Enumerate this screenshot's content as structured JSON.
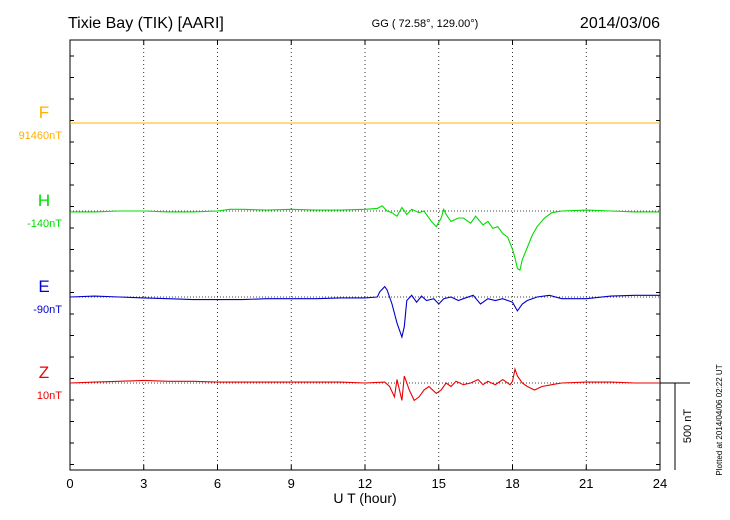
{
  "header": {
    "station": "Tixie Bay (TIK)  [AARI]",
    "coords": "GG ( 72.58°, 129.00°)",
    "date": "2014/03/06"
  },
  "stamp": "Plotted at 2014/04/06 02:22 UT",
  "chart_data": {
    "type": "line",
    "xlabel": "U T (hour)",
    "xlim": [
      0,
      24
    ],
    "xticks": [
      "0",
      "3",
      "6",
      "9",
      "12",
      "15",
      "18",
      "21",
      "24"
    ],
    "grid": "vertical dotted at 3-hour intervals",
    "scale_bar": {
      "label": "500 nT",
      "value_nT": 500
    },
    "series": [
      {
        "name": "F",
        "baseline_label": "91460nT",
        "color": "#ffb000",
        "points": [
          [
            0,
            0
          ],
          [
            24,
            0
          ]
        ]
      },
      {
        "name": "H",
        "baseline_label": "-140nT",
        "color": "#00dd00",
        "points": [
          [
            0,
            -5
          ],
          [
            1,
            -5
          ],
          [
            2,
            0
          ],
          [
            3,
            0
          ],
          [
            4,
            -5
          ],
          [
            5,
            -5
          ],
          [
            6,
            0
          ],
          [
            6.5,
            10
          ],
          [
            7,
            10
          ],
          [
            8,
            5
          ],
          [
            9,
            10
          ],
          [
            10,
            5
          ],
          [
            11,
            5
          ],
          [
            12,
            10
          ],
          [
            12.5,
            15
          ],
          [
            12.7,
            30
          ],
          [
            12.9,
            0
          ],
          [
            13.1,
            -10
          ],
          [
            13.3,
            -30
          ],
          [
            13.5,
            20
          ],
          [
            13.7,
            -20
          ],
          [
            13.9,
            10
          ],
          [
            14.2,
            -10
          ],
          [
            14.4,
            0
          ],
          [
            14.7,
            -60
          ],
          [
            14.9,
            -90
          ],
          [
            15.1,
            -40
          ],
          [
            15.2,
            10
          ],
          [
            15.3,
            -20
          ],
          [
            15.5,
            -60
          ],
          [
            15.8,
            -40
          ],
          [
            16.0,
            -40
          ],
          [
            16.3,
            -70
          ],
          [
            16.5,
            -30
          ],
          [
            16.8,
            -80
          ],
          [
            17.0,
            -60
          ],
          [
            17.2,
            -100
          ],
          [
            17.4,
            -90
          ],
          [
            17.6,
            -130
          ],
          [
            17.8,
            -150
          ],
          [
            18.0,
            -220
          ],
          [
            18.1,
            -270
          ],
          [
            18.2,
            -330
          ],
          [
            18.3,
            -340
          ],
          [
            18.4,
            -280
          ],
          [
            18.6,
            -210
          ],
          [
            18.8,
            -140
          ],
          [
            19.0,
            -90
          ],
          [
            19.3,
            -40
          ],
          [
            19.6,
            -10
          ],
          [
            20,
            0
          ],
          [
            21,
            5
          ],
          [
            22,
            0
          ],
          [
            23,
            -5
          ],
          [
            24,
            -5
          ]
        ]
      },
      {
        "name": "E",
        "baseline_label": "-90nT",
        "color": "#0000cc",
        "points": [
          [
            0,
            0
          ],
          [
            1,
            5
          ],
          [
            2,
            0
          ],
          [
            3,
            -5
          ],
          [
            4,
            -10
          ],
          [
            5,
            -15
          ],
          [
            6,
            -15
          ],
          [
            7,
            -15
          ],
          [
            8,
            -10
          ],
          [
            9,
            -10
          ],
          [
            10,
            -10
          ],
          [
            11,
            -5
          ],
          [
            12,
            -5
          ],
          [
            12.5,
            0
          ],
          [
            12.6,
            30
          ],
          [
            12.8,
            60
          ],
          [
            12.9,
            40
          ],
          [
            13.1,
            -40
          ],
          [
            13.3,
            -150
          ],
          [
            13.5,
            -230
          ],
          [
            13.6,
            -170
          ],
          [
            13.7,
            -20
          ],
          [
            13.9,
            10
          ],
          [
            14.1,
            -30
          ],
          [
            14.3,
            5
          ],
          [
            14.5,
            -20
          ],
          [
            14.8,
            -10
          ],
          [
            15.0,
            -40
          ],
          [
            15.2,
            -10
          ],
          [
            15.5,
            0
          ],
          [
            15.8,
            -20
          ],
          [
            16.0,
            -10
          ],
          [
            16.4,
            10
          ],
          [
            16.7,
            -40
          ],
          [
            17.0,
            -10
          ],
          [
            17.3,
            -20
          ],
          [
            17.6,
            -10
          ],
          [
            18.0,
            -30
          ],
          [
            18.2,
            -80
          ],
          [
            18.4,
            -40
          ],
          [
            18.6,
            -20
          ],
          [
            19.0,
            0
          ],
          [
            19.5,
            10
          ],
          [
            20,
            -10
          ],
          [
            21,
            -10
          ],
          [
            22,
            5
          ],
          [
            23,
            10
          ],
          [
            24,
            10
          ]
        ]
      },
      {
        "name": "Z",
        "baseline_label": "10nT",
        "color": "#ee0000",
        "points": [
          [
            0,
            0
          ],
          [
            1,
            5
          ],
          [
            2,
            10
          ],
          [
            3,
            15
          ],
          [
            4,
            10
          ],
          [
            5,
            10
          ],
          [
            6,
            5
          ],
          [
            7,
            5
          ],
          [
            8,
            5
          ],
          [
            9,
            5
          ],
          [
            10,
            5
          ],
          [
            11,
            5
          ],
          [
            12,
            0
          ],
          [
            12.8,
            5
          ],
          [
            13.0,
            -20
          ],
          [
            13.2,
            -80
          ],
          [
            13.3,
            20
          ],
          [
            13.5,
            -100
          ],
          [
            13.6,
            40
          ],
          [
            13.8,
            -40
          ],
          [
            14.0,
            -100
          ],
          [
            14.2,
            -80
          ],
          [
            14.4,
            -40
          ],
          [
            14.6,
            -20
          ],
          [
            14.9,
            -60
          ],
          [
            15.1,
            -40
          ],
          [
            15.3,
            0
          ],
          [
            15.5,
            -20
          ],
          [
            15.7,
            10
          ],
          [
            16.0,
            -10
          ],
          [
            16.3,
            0
          ],
          [
            16.6,
            20
          ],
          [
            16.8,
            -10
          ],
          [
            17.0,
            10
          ],
          [
            17.3,
            -10
          ],
          [
            17.6,
            20
          ],
          [
            17.9,
            -10
          ],
          [
            18.0,
            10
          ],
          [
            18.1,
            80
          ],
          [
            18.2,
            40
          ],
          [
            18.4,
            0
          ],
          [
            18.6,
            -20
          ],
          [
            18.9,
            -40
          ],
          [
            19.2,
            -20
          ],
          [
            19.6,
            -10
          ],
          [
            20,
            0
          ],
          [
            21,
            5
          ],
          [
            22,
            5
          ],
          [
            23,
            0
          ],
          [
            24,
            0
          ]
        ]
      }
    ]
  }
}
